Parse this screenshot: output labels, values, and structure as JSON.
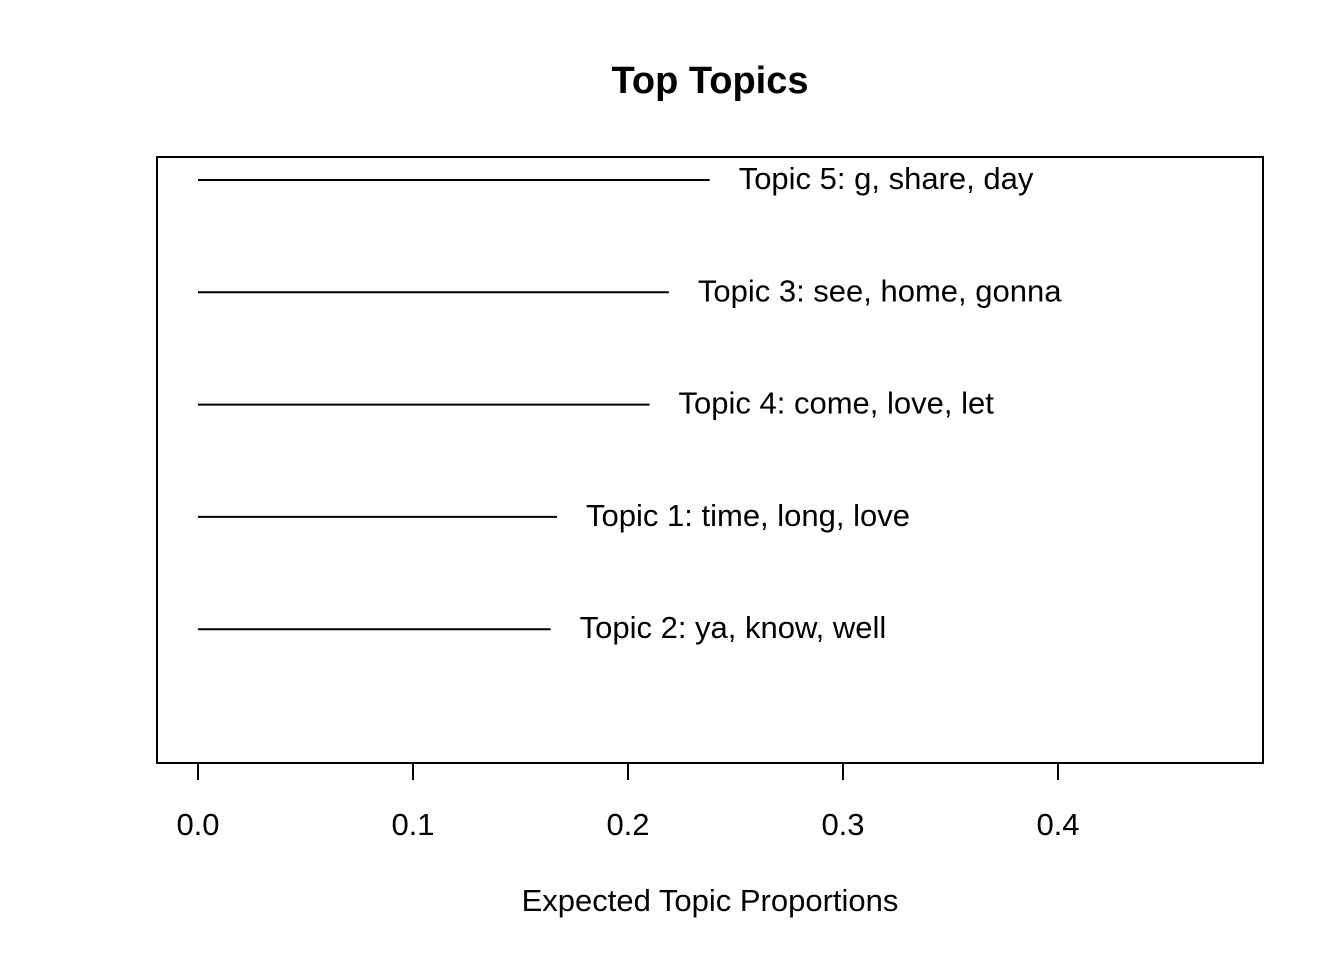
{
  "chart_data": {
    "type": "bar",
    "orientation": "horizontal",
    "title": "Top Topics",
    "xlabel": "Expected Topic Proportions",
    "ylabel": "",
    "xlim": [
      0,
      0.49
    ],
    "x_ticks": [
      "0.0",
      "0.1",
      "0.2",
      "0.3",
      "0.4"
    ],
    "categories": [
      "Topic 5: g, share, day",
      "Topic 3: see, home, gonna",
      "Topic 4: come, love, let",
      "Topic 1: time, long, love",
      "Topic 2: ya, know, well"
    ],
    "values": [
      0.238,
      0.219,
      0.21,
      0.167,
      0.164
    ],
    "grid": false,
    "legend": "none",
    "colors": {
      "line": "#000000",
      "background": "#ffffff"
    }
  }
}
